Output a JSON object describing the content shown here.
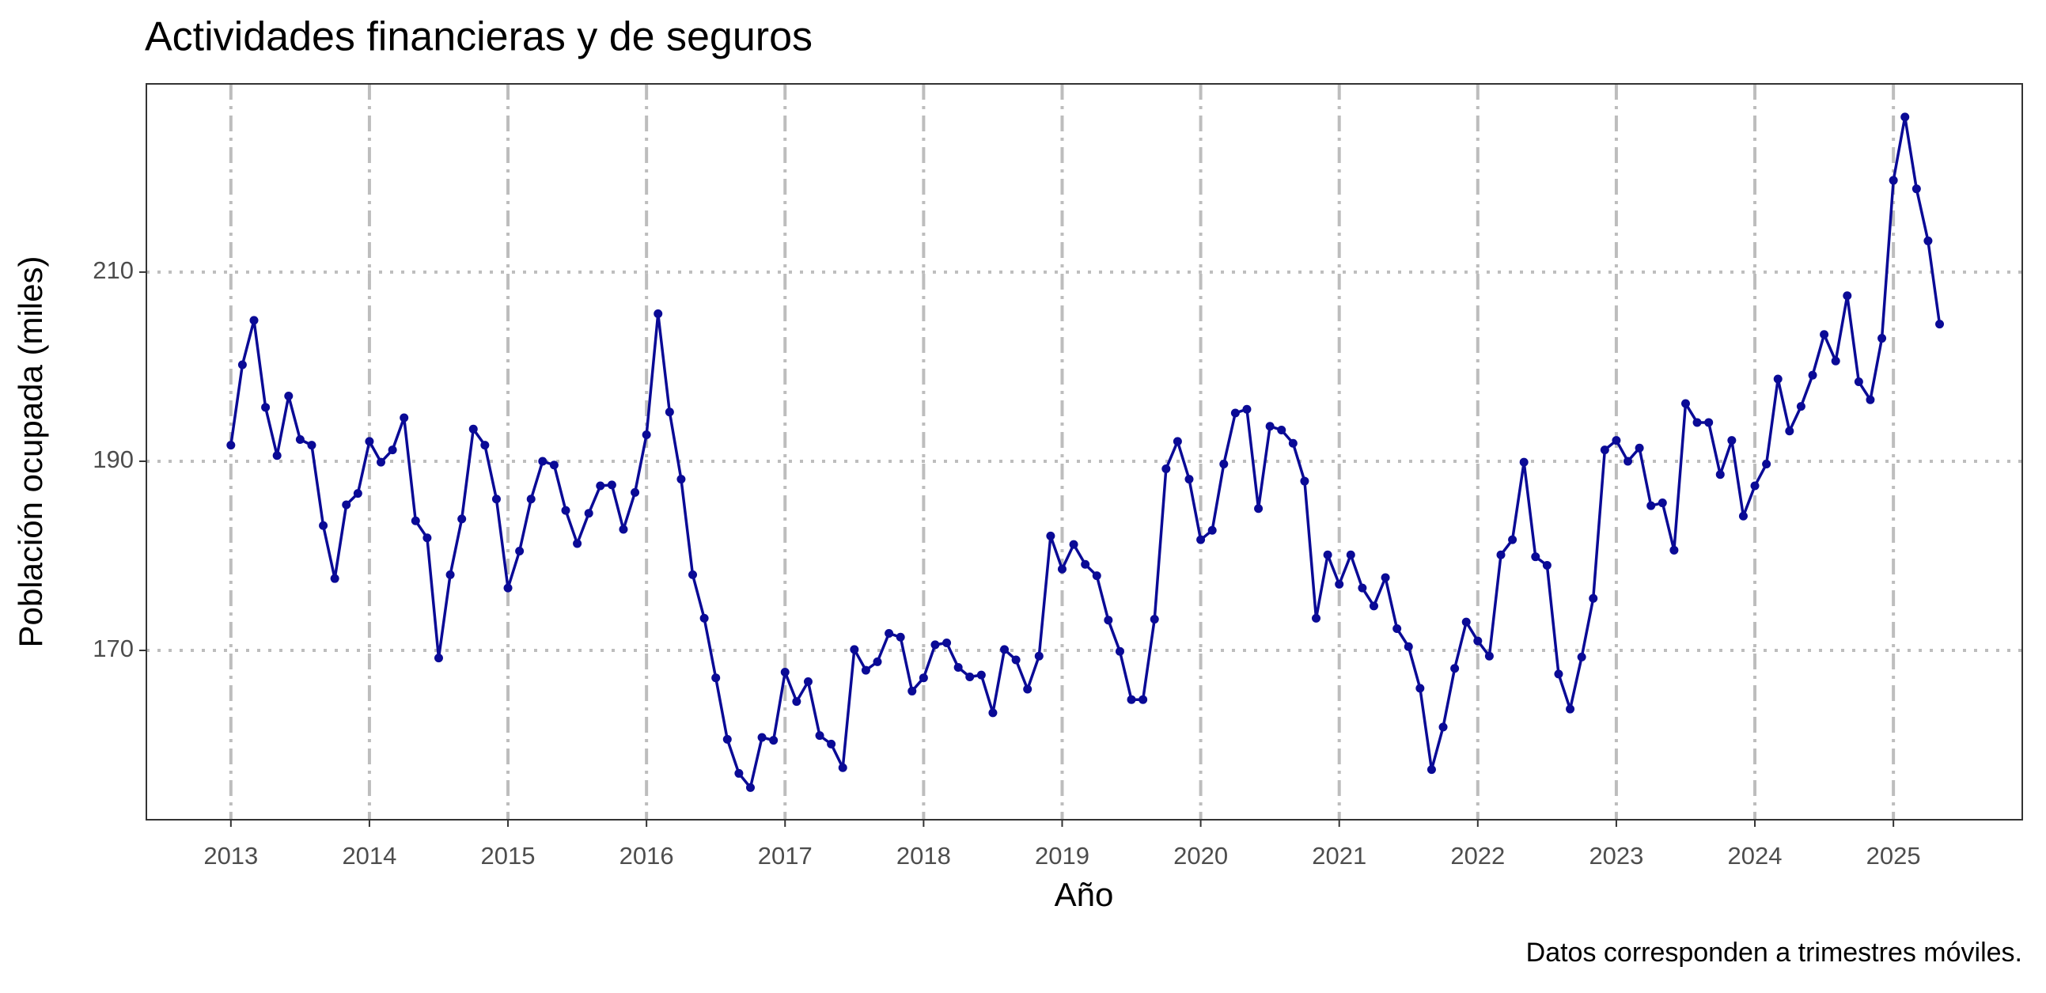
{
  "chart_data": {
    "type": "line",
    "title": "Actividades financieras y de seguros",
    "x_label": "Año",
    "y_label": "Población ocupada (miles)",
    "caption": "Datos corresponden a trimestres móviles.",
    "xlim": [
      2012.39,
      2025.93
    ],
    "xticks": [
      2013,
      2014,
      2015,
      2016,
      2017,
      2018,
      2019,
      2020,
      2021,
      2022,
      2023,
      2024,
      2025
    ],
    "ylim": [
      152.1,
      229.9
    ],
    "yticks": [
      170,
      190,
      210
    ],
    "grid": true,
    "x": [
      2013,
      2013.0833,
      2013.1667,
      2013.25,
      2013.3333,
      2013.4167,
      2013.5,
      2013.5833,
      2013.6667,
      2013.75,
      2013.8333,
      2013.9167,
      2014,
      2014.0833,
      2014.1667,
      2014.25,
      2014.3333,
      2014.4167,
      2014.5,
      2014.5833,
      2014.6667,
      2014.75,
      2014.8333,
      2014.9167,
      2015,
      2015.0833,
      2015.1667,
      2015.25,
      2015.3333,
      2015.4167,
      2015.5,
      2015.5833,
      2015.6667,
      2015.75,
      2015.8333,
      2015.9167,
      2016,
      2016.0833,
      2016.1667,
      2016.25,
      2016.3333,
      2016.4167,
      2016.5,
      2016.5833,
      2016.6667,
      2016.75,
      2016.8333,
      2016.9167,
      2017,
      2017.0833,
      2017.1667,
      2017.25,
      2017.3333,
      2017.4167,
      2017.5,
      2017.5833,
      2017.6667,
      2017.75,
      2017.8333,
      2017.9167,
      2018,
      2018.0833,
      2018.1667,
      2018.25,
      2018.3333,
      2018.4167,
      2018.5,
      2018.5833,
      2018.6667,
      2018.75,
      2018.8333,
      2018.9167,
      2019,
      2019.0833,
      2019.1667,
      2019.25,
      2019.3333,
      2019.4167,
      2019.5,
      2019.5833,
      2019.6667,
      2019.75,
      2019.8333,
      2019.9167,
      2020,
      2020.0833,
      2020.1667,
      2020.25,
      2020.3333,
      2020.4167,
      2020.5,
      2020.5833,
      2020.6667,
      2020.75,
      2020.8333,
      2020.9167,
      2021,
      2021.0833,
      2021.1667,
      2021.25,
      2021.3333,
      2021.4167,
      2021.5,
      2021.5833,
      2021.6667,
      2021.75,
      2021.8333,
      2021.9167,
      2022,
      2022.0833,
      2022.1667,
      2022.25,
      2022.3333,
      2022.4167,
      2022.5,
      2022.5833,
      2022.6667,
      2022.75,
      2022.8333,
      2022.9167,
      2023,
      2023.0833,
      2023.1667,
      2023.25,
      2023.3333,
      2023.4167,
      2023.5,
      2023.5833,
      2023.6667,
      2023.75,
      2023.8333,
      2023.9167,
      2024,
      2024.0833,
      2024.1667,
      2024.25,
      2024.3333,
      2024.4167,
      2024.5,
      2024.5833,
      2024.6667,
      2024.75,
      2024.8333,
      2024.9167,
      2025,
      2025.0833,
      2025.1667,
      2025.25,
      2025.3333
    ],
    "series": [
      {
        "color": "#0a0a96",
        "values": [
          191.7,
          200.2,
          204.9,
          195.7,
          190.6,
          196.9,
          192.3,
          191.7,
          183.2,
          177.6,
          185.4,
          186.6,
          192.1,
          189.9,
          191.2,
          194.6,
          183.7,
          181.9,
          169.2,
          178.0,
          183.9,
          193.4,
          191.7,
          186.0,
          176.6,
          180.5,
          186.0,
          190.0,
          189.6,
          184.8,
          181.3,
          184.5,
          187.4,
          187.5,
          182.8,
          186.7,
          192.8,
          205.6,
          195.2,
          188.1,
          178.0,
          173.4,
          167.1,
          160.6,
          157.0,
          155.5,
          160.8,
          160.5,
          167.7,
          164.6,
          166.7,
          161.0,
          160.1,
          157.6,
          170.1,
          167.9,
          168.8,
          171.8,
          171.4,
          165.7,
          167.1,
          170.6,
          170.8,
          168.2,
          167.2,
          167.4,
          163.4,
          170.1,
          169.0,
          165.9,
          169.4,
          182.1,
          178.6,
          181.2,
          179.1,
          177.9,
          173.2,
          169.9,
          164.8,
          164.8,
          173.3,
          189.2,
          192.1,
          188.1,
          181.7,
          182.7,
          189.7,
          195.1,
          195.5,
          185.0,
          193.7,
          193.3,
          191.9,
          187.9,
          173.4,
          180.1,
          177.0,
          180.1,
          176.6,
          174.7,
          177.7,
          172.3,
          170.4,
          166.0,
          157.4,
          161.9,
          168.1,
          173.0,
          171.0,
          169.4,
          180.1,
          181.7,
          189.9,
          179.9,
          179.0,
          167.5,
          163.8,
          169.3,
          175.5,
          191.2,
          192.2,
          190.0,
          191.4,
          185.3,
          185.6,
          180.6,
          196.1,
          194.1,
          194.1,
          188.6,
          192.2,
          184.2,
          187.4,
          189.7,
          198.7,
          193.2,
          195.8,
          199.1,
          203.4,
          200.6,
          207.5,
          198.4,
          196.5,
          203.0,
          219.7,
          226.4,
          218.8,
          213.3,
          204.5
        ]
      }
    ]
  }
}
